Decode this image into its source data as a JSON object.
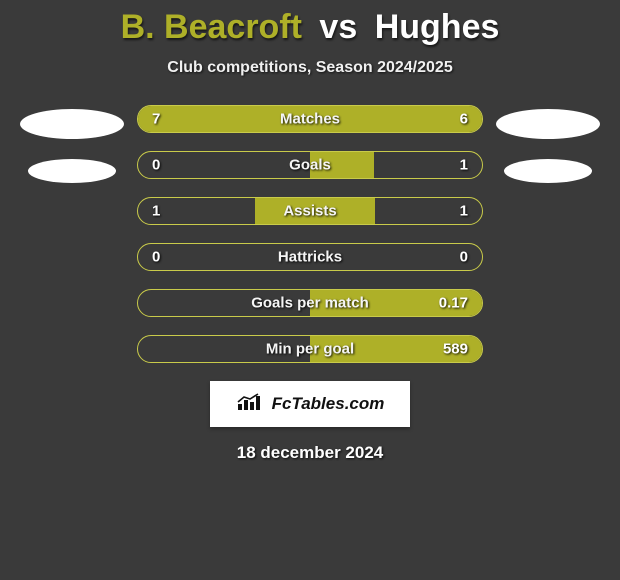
{
  "header": {
    "player1": "B. Beacroft",
    "vs": "vs",
    "player2": "Hughes",
    "subtitle": "Club competitions, Season 2024/2025"
  },
  "colors": {
    "background": "#3a3a3a",
    "accent": "#aeb028",
    "bar_border": "#c9cb4a",
    "text": "#ffffff",
    "avatar_bg": "#ffffff"
  },
  "rows": [
    {
      "label": "Matches",
      "left_val": "7",
      "right_val": "6",
      "left_pct": 100,
      "right_pct": 100
    },
    {
      "label": "Goals",
      "left_val": "0",
      "right_val": "1",
      "left_pct": 0,
      "right_pct": 37
    },
    {
      "label": "Assists",
      "left_val": "1",
      "right_val": "1",
      "left_pct": 32,
      "right_pct": 38
    },
    {
      "label": "Hattricks",
      "left_val": "0",
      "right_val": "0",
      "left_pct": 0,
      "right_pct": 0
    },
    {
      "label": "Goals per match",
      "left_val": "",
      "right_val": "0.17",
      "left_pct": 0,
      "right_pct": 100
    },
    {
      "label": "Min per goal",
      "left_val": "",
      "right_val": "589",
      "left_pct": 0,
      "right_pct": 100
    }
  ],
  "footer": {
    "site": "FcTables.com",
    "date": "18 december 2024"
  }
}
